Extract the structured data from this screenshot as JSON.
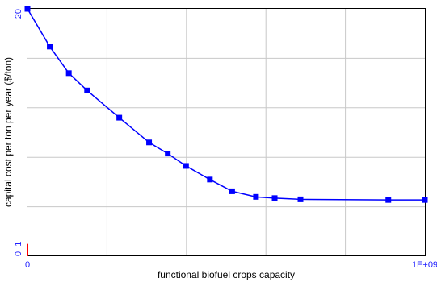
{
  "chart_data": {
    "type": "line",
    "title": "",
    "xlabel": "functional biofuel crops capacity",
    "ylabel": "capital cost per ton per year ($/ton)",
    "xlim": [
      0,
      1000000000
    ],
    "ylim": [
      0,
      20
    ],
    "x_tick_labels": [
      "0",
      "1E+09"
    ],
    "y_tick_labels": [
      "0",
      "1",
      "20"
    ],
    "grid": true,
    "legend": "none",
    "series": [
      {
        "color": "#0000ff",
        "marker": "square",
        "points": [
          {
            "x": 0,
            "y": 20
          },
          {
            "x": 56000000,
            "y": 16.95
          },
          {
            "x": 104000000,
            "y": 14.8
          },
          {
            "x": 150000000,
            "y": 13.4
          },
          {
            "x": 231000000,
            "y": 11.2
          },
          {
            "x": 306000000,
            "y": 9.2
          },
          {
            "x": 353000000,
            "y": 8.3
          },
          {
            "x": 399000000,
            "y": 7.3
          },
          {
            "x": 459000000,
            "y": 6.2
          },
          {
            "x": 515000000,
            "y": 5.25
          },
          {
            "x": 575000000,
            "y": 4.8
          },
          {
            "x": 622000000,
            "y": 4.7
          },
          {
            "x": 687000000,
            "y": 4.6
          },
          {
            "x": 908000000,
            "y": 4.55
          },
          {
            "x": 1000000000,
            "y": 4.55
          }
        ]
      }
    ],
    "baseline_marker": {
      "color": "#ff0000",
      "points": [
        {
          "x": 0,
          "y": 0
        },
        {
          "x": 0,
          "y": 1
        }
      ]
    }
  }
}
